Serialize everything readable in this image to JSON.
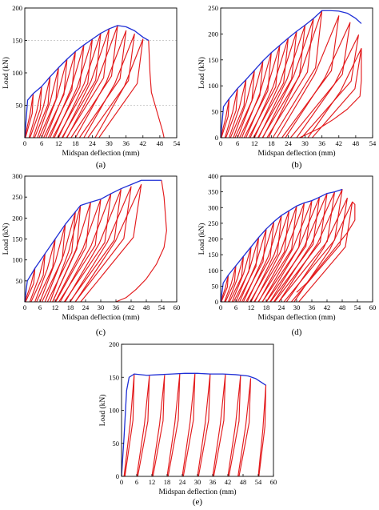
{
  "figure": {
    "panels": [
      "(a)",
      "(b)",
      "(c)",
      "(d)",
      "(e)"
    ]
  },
  "colors": {
    "cycles": "#e31a1c",
    "envelope": "#1f2fd6",
    "gridline": "#999999"
  },
  "chart_data": [
    {
      "panel": "(a)",
      "type": "line",
      "xlabel": "Midspan deflection (mm)",
      "ylabel": "Load (kN)",
      "xlim": [
        0,
        54
      ],
      "ylim": [
        0,
        200
      ],
      "xticks": [
        0,
        6,
        12,
        18,
        24,
        30,
        36,
        42,
        48,
        54
      ],
      "yticks": [
        50,
        100,
        150,
        200
      ],
      "ygrid": [
        50,
        150
      ],
      "envelope": {
        "x": [
          0,
          1,
          3,
          6,
          9,
          12,
          15,
          18,
          21,
          24,
          27,
          30,
          33,
          36,
          39,
          42,
          44
        ],
        "y": [
          0,
          58,
          68,
          79,
          94,
          108,
          121,
          133,
          143,
          152,
          161,
          168,
          173,
          171,
          165,
          155,
          150
        ]
      },
      "cycle_peaks": [
        [
          3,
          68
        ],
        [
          6,
          79
        ],
        [
          9,
          94
        ],
        [
          12,
          108
        ],
        [
          15,
          121
        ],
        [
          18,
          133
        ],
        [
          21,
          143
        ],
        [
          24,
          152
        ],
        [
          27,
          161
        ],
        [
          30,
          168
        ],
        [
          33,
          173
        ],
        [
          36,
          165
        ],
        [
          39,
          160
        ],
        [
          42,
          152
        ]
      ],
      "cycle_residual": [
        0,
        1.5,
        3,
        4.5,
        6,
        7.5,
        9,
        10.5,
        12,
        13.5,
        15,
        18,
        21,
        25
      ],
      "final_drop": {
        "x": [
          44,
          44.5,
          45,
          46,
          47,
          48,
          49,
          49.5
        ],
        "y": [
          150,
          100,
          70,
          55,
          40,
          25,
          10,
          0
        ]
      }
    },
    {
      "panel": "(b)",
      "type": "line",
      "xlabel": "Midspan deflection (mm)",
      "ylabel": "Load (kN)",
      "xlim": [
        0,
        54
      ],
      "ylim": [
        0,
        250
      ],
      "xticks": [
        0,
        6,
        12,
        18,
        24,
        30,
        36,
        42,
        48,
        54
      ],
      "yticks": [
        0,
        50,
        100,
        150,
        200,
        250
      ],
      "envelope": {
        "x": [
          0,
          1,
          3,
          6,
          9,
          12,
          15,
          18,
          21,
          24,
          27,
          30,
          33,
          36,
          39,
          42,
          45,
          48,
          50
        ],
        "y": [
          0,
          60,
          75,
          95,
          112,
          130,
          148,
          164,
          178,
          192,
          205,
          217,
          230,
          245,
          245,
          244,
          240,
          230,
          220
        ]
      },
      "cycle_peaks": [
        [
          3,
          75
        ],
        [
          6,
          95
        ],
        [
          9,
          112
        ],
        [
          12,
          130
        ],
        [
          15,
          148
        ],
        [
          18,
          164
        ],
        [
          21,
          178
        ],
        [
          24,
          192
        ],
        [
          27,
          205
        ],
        [
          30,
          217
        ],
        [
          33,
          230
        ],
        [
          36,
          245
        ],
        [
          42,
          235
        ],
        [
          46,
          222
        ],
        [
          49,
          198
        ],
        [
          50,
          172
        ]
      ],
      "cycle_residual": [
        0,
        1.5,
        3,
        4.5,
        6,
        7.5,
        9,
        10.5,
        12,
        13.5,
        15,
        17,
        20,
        23,
        27,
        31
      ],
      "final_drop": {
        "x": [
          50,
          50,
          49.5,
          45,
          40,
          35,
          30,
          28
        ],
        "y": [
          172,
          110,
          80,
          55,
          35,
          18,
          5,
          0
        ]
      }
    },
    {
      "panel": "(c)",
      "type": "line",
      "xlabel": "Midspan deflection (mm)",
      "ylabel": "Load (kN)",
      "xlim": [
        0,
        60
      ],
      "ylim": [
        0,
        300
      ],
      "xticks": [
        0,
        6,
        12,
        18,
        24,
        30,
        36,
        42,
        48,
        54,
        60
      ],
      "yticks": [
        50,
        100,
        150,
        200,
        250,
        300
      ],
      "envelope": {
        "x": [
          0,
          1,
          4,
          8,
          12,
          16,
          20,
          22,
          26,
          30,
          34,
          38,
          42,
          46,
          50,
          54
        ],
        "y": [
          0,
          50,
          80,
          115,
          150,
          185,
          215,
          230,
          238,
          245,
          258,
          270,
          280,
          290,
          290,
          290
        ]
      },
      "cycle_peaks": [
        [
          4,
          80
        ],
        [
          8,
          115
        ],
        [
          12,
          150
        ],
        [
          16,
          185
        ],
        [
          20,
          215
        ],
        [
          22,
          230
        ],
        [
          26,
          238
        ],
        [
          30,
          245
        ],
        [
          34,
          258
        ],
        [
          38,
          268
        ],
        [
          42,
          275
        ],
        [
          46,
          280
        ]
      ],
      "cycle_residual": [
        0,
        2,
        4,
        6,
        8,
        10,
        11,
        12,
        14,
        16,
        18,
        20
      ],
      "final_drop": {
        "x": [
          54,
          55,
          56,
          55,
          52,
          48,
          44,
          40,
          36
        ],
        "y": [
          290,
          250,
          170,
          130,
          90,
          55,
          30,
          10,
          0
        ]
      }
    },
    {
      "panel": "(d)",
      "type": "line",
      "xlabel": "Midspan deflection (mm)",
      "ylabel": "Load (kN)",
      "xlim": [
        0,
        60
      ],
      "ylim": [
        0,
        400
      ],
      "xticks": [
        0,
        6,
        12,
        18,
        24,
        30,
        36,
        42,
        48,
        54,
        60
      ],
      "yticks": [
        0,
        50,
        100,
        150,
        200,
        250,
        300,
        350,
        400
      ],
      "envelope": {
        "x": [
          0,
          1,
          3,
          6,
          9,
          12,
          15,
          18,
          21,
          24,
          27,
          30,
          33,
          36,
          39,
          42,
          45,
          48
        ],
        "y": [
          0,
          60,
          85,
          115,
          145,
          175,
          205,
          232,
          255,
          275,
          290,
          305,
          315,
          322,
          333,
          345,
          350,
          358
        ]
      },
      "cycle_peaks": [
        [
          3,
          85
        ],
        [
          6,
          115
        ],
        [
          9,
          145
        ],
        [
          12,
          175
        ],
        [
          15,
          205
        ],
        [
          18,
          232
        ],
        [
          21,
          255
        ],
        [
          24,
          275
        ],
        [
          27,
          290
        ],
        [
          30,
          305
        ],
        [
          33,
          315
        ],
        [
          36,
          322
        ],
        [
          39,
          333
        ],
        [
          42,
          345
        ],
        [
          45,
          350
        ],
        [
          48,
          358
        ],
        [
          50,
          330
        ],
        [
          52,
          318
        ]
      ],
      "cycle_residual": [
        0,
        1.5,
        3,
        4.5,
        6,
        7.5,
        9,
        10.5,
        12,
        13.5,
        15,
        16.5,
        18,
        19.5,
        21,
        23,
        26,
        29
      ],
      "final_drop": {
        "x": [
          52,
          53,
          53,
          50,
          46,
          42,
          38,
          34,
          30
        ],
        "y": [
          318,
          310,
          260,
          220,
          180,
          140,
          100,
          60,
          30
        ]
      }
    },
    {
      "panel": "(e)",
      "type": "line",
      "xlabel": "Midspan deflection (mm)",
      "ylabel": "Load (kN)",
      "xlim": [
        0,
        60
      ],
      "ylim": [
        0,
        200
      ],
      "xticks": [
        0,
        6,
        12,
        18,
        24,
        30,
        36,
        42,
        48,
        54,
        60
      ],
      "yticks": [
        0,
        50,
        100,
        150,
        200
      ],
      "envelope": {
        "x": [
          0,
          1,
          2,
          3,
          5,
          10,
          15,
          20,
          25,
          30,
          35,
          40,
          45,
          50,
          53,
          55,
          57
        ],
        "y": [
          0,
          60,
          130,
          150,
          155,
          153,
          154,
          155,
          156,
          156,
          155,
          155,
          154,
          152,
          148,
          143,
          138
        ]
      },
      "cycle_peaks": [
        [
          5,
          155
        ],
        [
          11,
          152
        ],
        [
          17,
          153
        ],
        [
          23,
          155
        ],
        [
          29,
          156
        ],
        [
          35,
          155
        ],
        [
          41,
          154
        ],
        [
          47,
          152
        ],
        [
          51,
          148
        ],
        [
          57,
          138
        ]
      ],
      "cycle_residual": [
        1,
        6,
        12,
        18,
        24,
        30,
        36,
        42,
        46,
        54
      ],
      "final_drop": {
        "x": [],
        "y": []
      }
    }
  ]
}
